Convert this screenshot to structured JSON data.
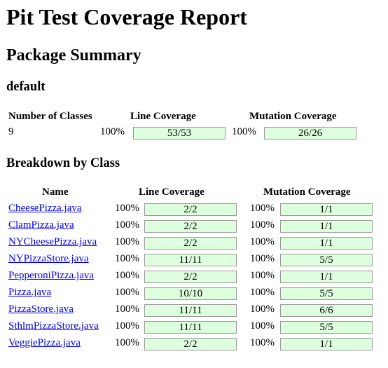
{
  "title": "Pit Test Coverage Report",
  "package_summary": {
    "heading": "Package Summary",
    "package_name": "default",
    "headers": {
      "classes": "Number of Classes",
      "line": "Line Coverage",
      "mutation": "Mutation Coverage"
    },
    "num_classes": "9",
    "line_pct": "100%",
    "line_value": "53/53",
    "mutation_pct": "100%",
    "mutation_value": "26/26"
  },
  "breakdown": {
    "heading": "Breakdown by Class",
    "headers": {
      "name": "Name",
      "line": "Line Coverage",
      "mutation": "Mutation Coverage"
    },
    "rows": [
      {
        "name": "CheesePizza.java",
        "line_pct": "100%",
        "line": "2/2",
        "mut_pct": "100%",
        "mut": "1/1"
      },
      {
        "name": "ClamPizza.java",
        "line_pct": "100%",
        "line": "2/2",
        "mut_pct": "100%",
        "mut": "1/1"
      },
      {
        "name": "NYCheesePizza.java",
        "line_pct": "100%",
        "line": "2/2",
        "mut_pct": "100%",
        "mut": "1/1"
      },
      {
        "name": "NYPizzaStore.java",
        "line_pct": "100%",
        "line": "11/11",
        "mut_pct": "100%",
        "mut": "5/5"
      },
      {
        "name": "PepperoniPizza.java",
        "line_pct": "100%",
        "line": "2/2",
        "mut_pct": "100%",
        "mut": "1/1"
      },
      {
        "name": "Pizza.java",
        "line_pct": "100%",
        "line": "10/10",
        "mut_pct": "100%",
        "mut": "5/5"
      },
      {
        "name": "PizzaStore.java",
        "line_pct": "100%",
        "line": "11/11",
        "mut_pct": "100%",
        "mut": "6/6"
      },
      {
        "name": "SthlmPizzaStore.java",
        "line_pct": "100%",
        "line": "11/11",
        "mut_pct": "100%",
        "mut": "5/5"
      },
      {
        "name": "VeggiePizza.java",
        "line_pct": "100%",
        "line": "2/2",
        "mut_pct": "100%",
        "mut": "1/1"
      }
    ]
  },
  "colors": {
    "coverage_fill": "#ddffdd",
    "link": "#0000ee"
  }
}
